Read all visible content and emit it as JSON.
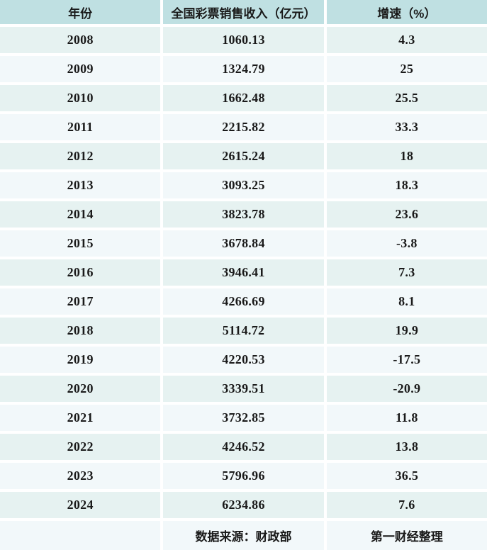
{
  "colors": {
    "header_bg": "#bfe0e2",
    "row_dark": "#e6f2f1",
    "row_light": "#f2f8fa",
    "divider": "#ffffff",
    "text": "#1a1a1a"
  },
  "chart_data": {
    "type": "table",
    "title": "",
    "columns": [
      "年份",
      "全国彩票销售收入（亿元）",
      "增速（%）"
    ],
    "rows": [
      [
        "2008",
        "1060.13",
        "4.3"
      ],
      [
        "2009",
        "1324.79",
        "25"
      ],
      [
        "2010",
        "1662.48",
        "25.5"
      ],
      [
        "2011",
        "2215.82",
        "33.3"
      ],
      [
        "2012",
        "2615.24",
        "18"
      ],
      [
        "2013",
        "3093.25",
        "18.3"
      ],
      [
        "2014",
        "3823.78",
        "23.6"
      ],
      [
        "2015",
        "3678.84",
        "-3.8"
      ],
      [
        "2016",
        "3946.41",
        "7.3"
      ],
      [
        "2017",
        "4266.69",
        "8.1"
      ],
      [
        "2018",
        "5114.72",
        "19.9"
      ],
      [
        "2019",
        "4220.53",
        "-17.5"
      ],
      [
        "2020",
        "3339.51",
        "-20.9"
      ],
      [
        "2021",
        "3732.85",
        "11.8"
      ],
      [
        "2022",
        "4246.52",
        "13.8"
      ],
      [
        "2023",
        "5796.96",
        "36.5"
      ],
      [
        "2024",
        "6234.86",
        "7.6"
      ]
    ],
    "years": [
      2008,
      2009,
      2010,
      2011,
      2012,
      2013,
      2014,
      2015,
      2016,
      2017,
      2018,
      2019,
      2020,
      2021,
      2022,
      2023,
      2024
    ],
    "revenue_billion_yuan": [
      1060.13,
      1324.79,
      1662.48,
      2215.82,
      2615.24,
      3093.25,
      3823.78,
      3678.84,
      3946.41,
      4266.69,
      5114.72,
      4220.53,
      3339.51,
      3732.85,
      4246.52,
      5796.96,
      6234.86
    ],
    "growth_percent": [
      4.3,
      25,
      25.5,
      33.3,
      18,
      18.3,
      23.6,
      -3.8,
      7.3,
      8.1,
      19.9,
      -17.5,
      -20.9,
      11.8,
      13.8,
      36.5,
      7.6
    ],
    "source_note": "数据来源：财政部",
    "credit_note": "第一财经整理"
  }
}
